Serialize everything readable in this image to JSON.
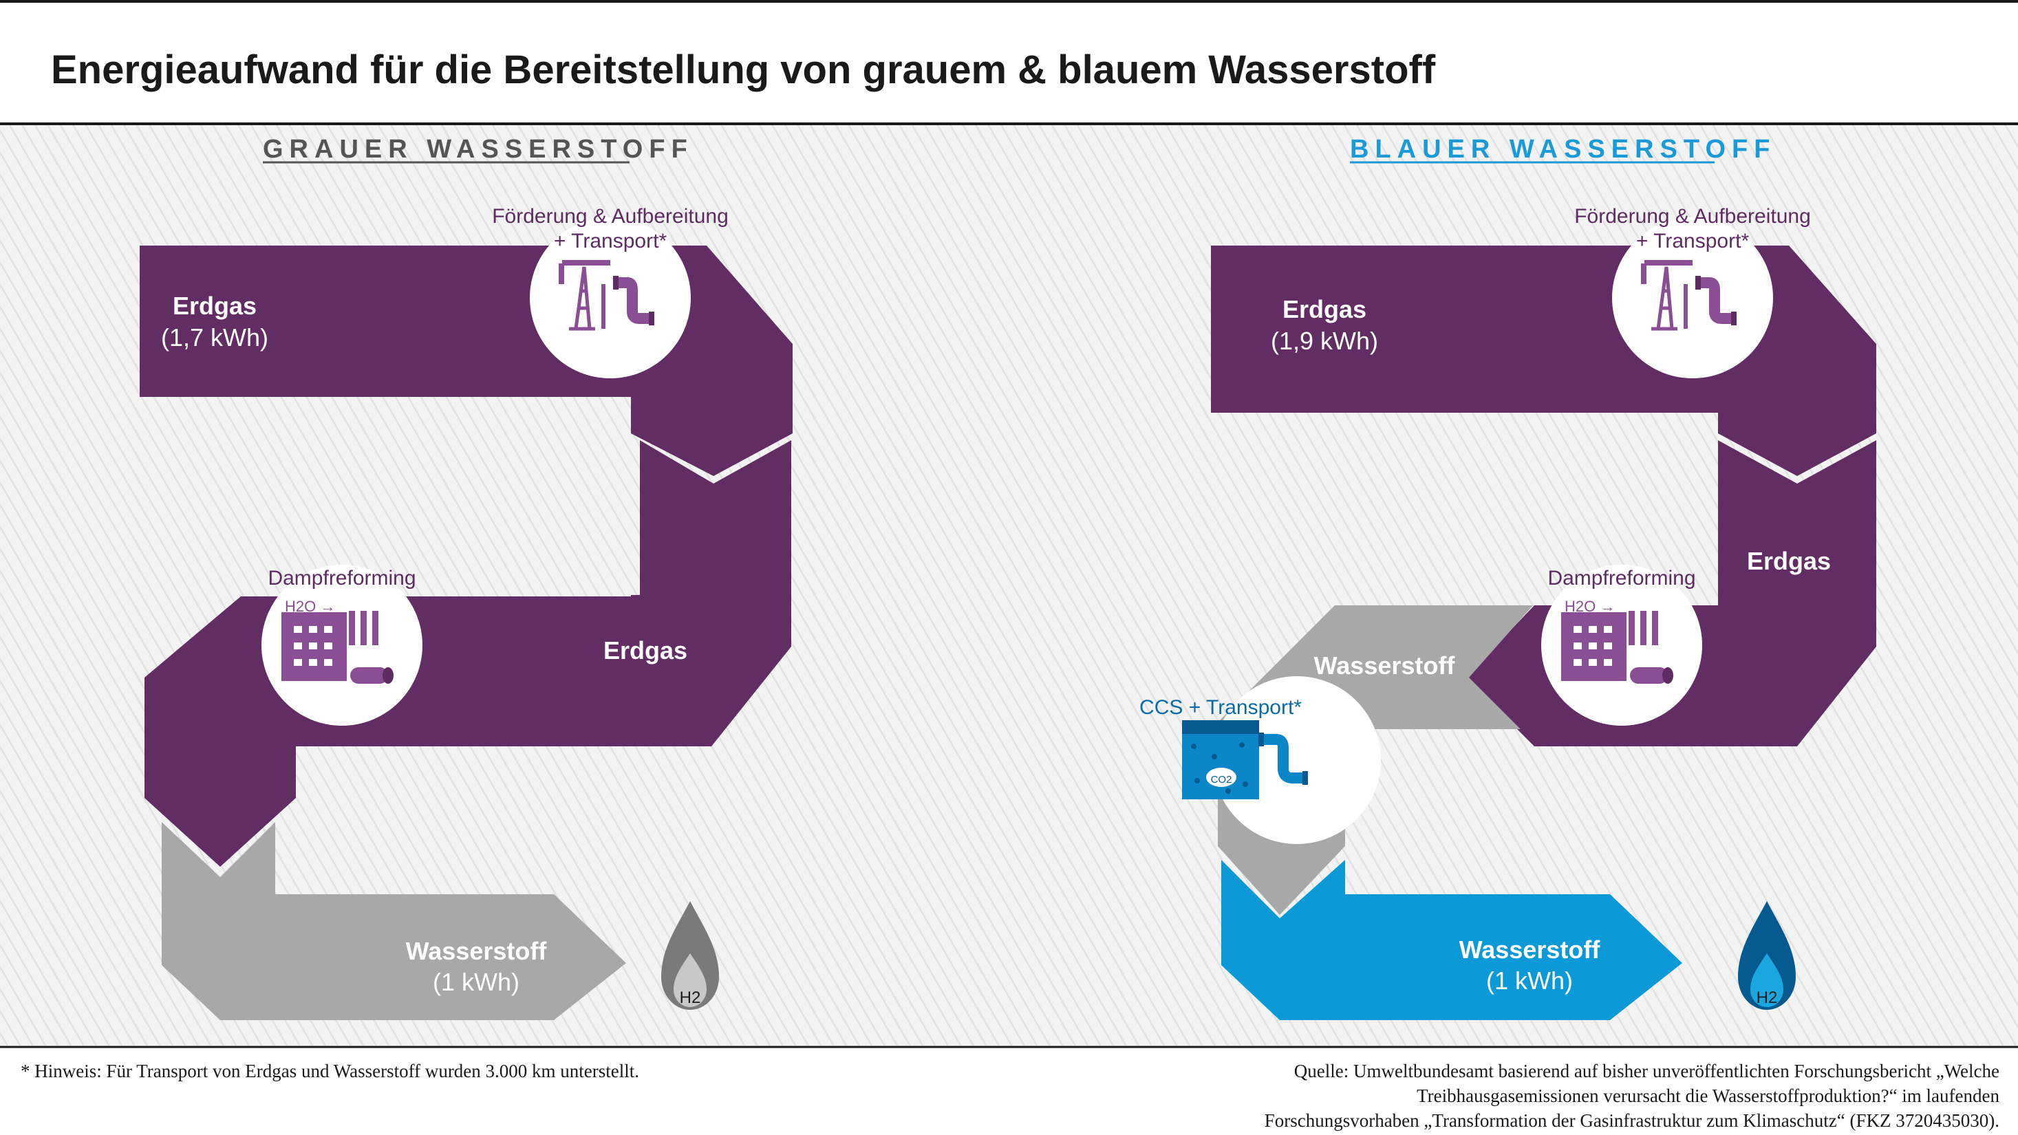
{
  "title": "Energieaufwand für die Bereitstellung von grauem & blauem Wasserstoff",
  "colors": {
    "purple": "#612d62",
    "gray": "#a8a8a8",
    "blue": "#0b9ad7",
    "icon_purple": "#8a4e94",
    "icon_blue": "#0b7dc1",
    "label_purple": "#5e2b63"
  },
  "grau": {
    "heading": "GRAUER WASSERSTOFF",
    "erdgas_label": "Erdgas",
    "erdgas_value": "(1,7 kWh)",
    "foerderung_line1": "Förderung & Aufbereitung",
    "foerderung_line2": "+ Transport*",
    "foerderung_icon": "oil-pump-pipe-icon",
    "dampf_label": "Dampfreforming",
    "dampf_icon": "factory-icon",
    "h2o_label": "H2O →",
    "erdgas2_label": "Erdgas",
    "wasserstoff_label": "Wasserstoff",
    "wasserstoff_value": "(1 kWh)",
    "drop_icon": "hydrogen-drop-icon",
    "drop_label": "H2"
  },
  "blau": {
    "heading": "BLAUER WASSERSTOFF",
    "erdgas_label": "Erdgas",
    "erdgas_value": "(1,9 kWh)",
    "foerderung_line1": "Förderung & Aufbereitung",
    "foerderung_line2": "+ Transport*",
    "foerderung_icon": "oil-pump-pipe-icon",
    "erdgas2_label": "Erdgas",
    "dampf_label": "Dampfreforming",
    "dampf_icon": "factory-icon",
    "h2o_label": "H2O →",
    "wasserstoff_gray_label": "Wasserstoff",
    "ccs_label": "CCS + Transport*",
    "ccs_icon": "co2-storage-pipe-icon",
    "co2_label": "CO2",
    "wasserstoff_label": "Wasserstoff",
    "wasserstoff_value": "(1 kWh)",
    "drop_icon": "hydrogen-drop-icon",
    "drop_label": "H2"
  },
  "footer": {
    "note": "* Hinweis: Für Transport von Erdgas und Wasserstoff wurden 3.000 km unterstellt.",
    "source_line1": "Quelle: Umweltbundesamt basierend auf bisher unveröffentlichten Forschungsbericht „Welche",
    "source_line2": "Treibhausgasemissionen verursacht die Wasserstoffproduktion?“ im laufenden",
    "source_line3": "Forschungsvorhaben „Transformation der Gasinfrastruktur zum Klimaschutz“ (FKZ 3720435030)."
  }
}
